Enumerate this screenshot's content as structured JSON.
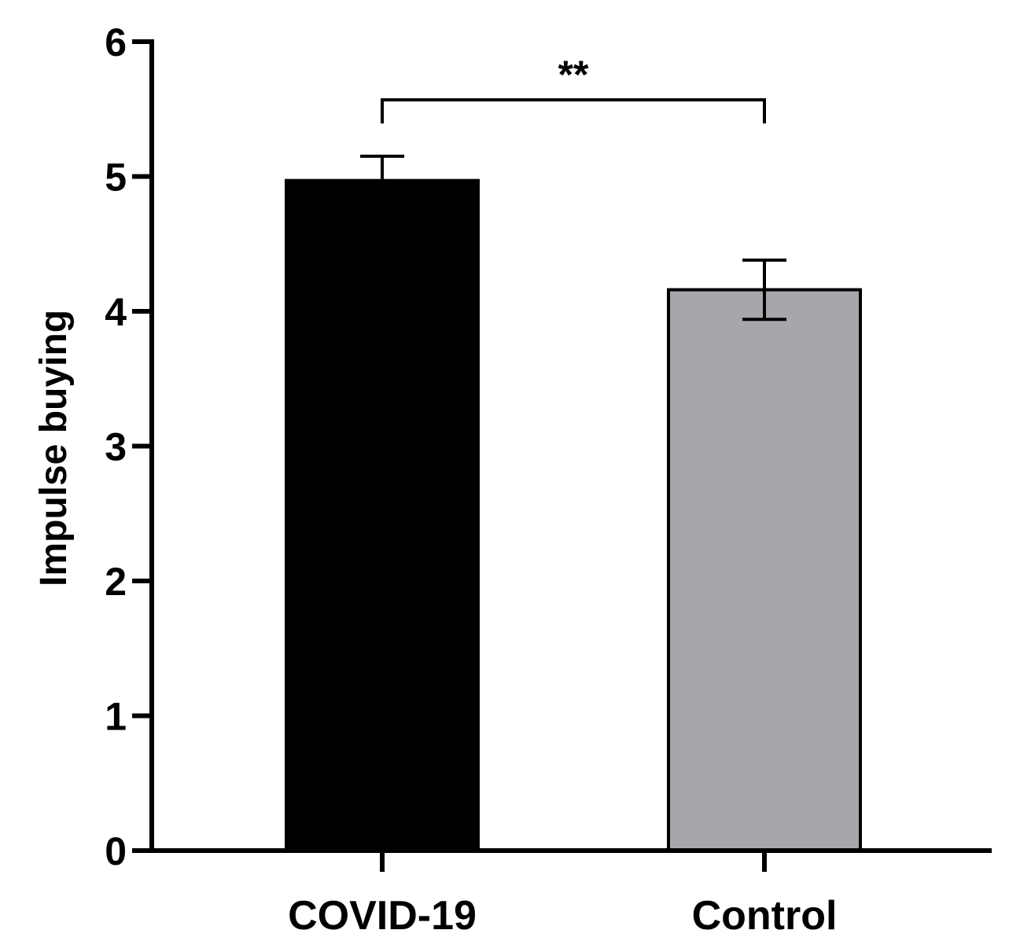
{
  "chart_data": {
    "type": "bar",
    "title": "",
    "xlabel": "",
    "ylabel": "Impulse buying",
    "categories": [
      "COVID-19",
      "Control"
    ],
    "values": [
      4.97,
      4.16
    ],
    "error": [
      0.18,
      0.22
    ],
    "bar_colors": [
      "#000000",
      "#a7a6aa"
    ],
    "ylim": [
      0,
      6
    ],
    "yticks": [
      "0",
      "1",
      "2",
      "3",
      "4",
      "5",
      "6"
    ],
    "grid": false,
    "legend": "none",
    "annotations": [
      {
        "text": "**",
        "between": [
          "COVID-19",
          "Control"
        ]
      }
    ]
  }
}
